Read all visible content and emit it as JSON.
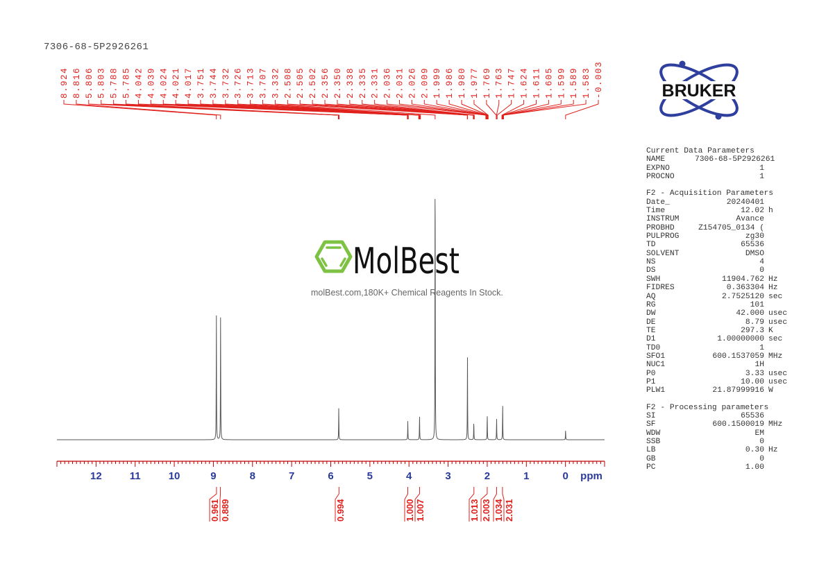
{
  "sample_id": "7306-68-5P2926261",
  "logo": {
    "brand": "BRUKER",
    "watermark_brand": "MolBest",
    "watermark_tagline": "molBest.com,180K+ Chemical Reagents In Stock."
  },
  "colors": {
    "annotation": "#e0201c",
    "spectrum": "#555555",
    "axis": "#c00000",
    "bruker_blue": "#2e3f9e",
    "molbest_green": "#7dc242"
  },
  "parameters": [
    {
      "heading": "Current Data Parameters",
      "rows": [
        {
          "key": "NAME",
          "value": "7306-68-5P2926261",
          "unit": ""
        },
        {
          "key": "EXPNO",
          "value": "1",
          "unit": ""
        },
        {
          "key": "PROCNO",
          "value": "1",
          "unit": ""
        }
      ]
    },
    {
      "heading": "F2 - Acquisition Parameters",
      "rows": [
        {
          "key": "Date_",
          "value": "20240401",
          "unit": ""
        },
        {
          "key": "Time",
          "value": "12.02",
          "unit": "h"
        },
        {
          "key": "INSTRUM",
          "value": "Avance",
          "unit": ""
        },
        {
          "key": "PROBHD",
          "value": "Z154705_0134 (",
          "unit": ""
        },
        {
          "key": "PULPROG",
          "value": "zg30",
          "unit": ""
        },
        {
          "key": "TD",
          "value": "65536",
          "unit": ""
        },
        {
          "key": "SOLVENT",
          "value": "DMSO",
          "unit": ""
        },
        {
          "key": "NS",
          "value": "4",
          "unit": ""
        },
        {
          "key": "DS",
          "value": "0",
          "unit": ""
        },
        {
          "key": "SWH",
          "value": "11904.762",
          "unit": "Hz"
        },
        {
          "key": "FIDRES",
          "value": "0.363304",
          "unit": "Hz"
        },
        {
          "key": "AQ",
          "value": "2.7525120",
          "unit": "sec"
        },
        {
          "key": "RG",
          "value": "101",
          "unit": ""
        },
        {
          "key": "DW",
          "value": "42.000",
          "unit": "usec"
        },
        {
          "key": "DE",
          "value": "8.79",
          "unit": "usec"
        },
        {
          "key": "TE",
          "value": "297.3",
          "unit": "K"
        },
        {
          "key": "D1",
          "value": "1.00000000",
          "unit": "sec"
        },
        {
          "key": "TD0",
          "value": "1",
          "unit": ""
        },
        {
          "key": "SFO1",
          "value": "600.1537059",
          "unit": "MHz"
        },
        {
          "key": "NUC1",
          "value": "1H",
          "unit": ""
        },
        {
          "key": "P0",
          "value": "3.33",
          "unit": "usec"
        },
        {
          "key": "P1",
          "value": "10.00",
          "unit": "usec"
        },
        {
          "key": "PLW1",
          "value": "21.87999916",
          "unit": "W"
        }
      ]
    },
    {
      "heading": "F2 - Processing parameters",
      "rows": [
        {
          "key": "SI",
          "value": "65536",
          "unit": ""
        },
        {
          "key": "SF",
          "value": "600.1500019",
          "unit": "MHz"
        },
        {
          "key": "WDW",
          "value": "EM",
          "unit": ""
        },
        {
          "key": "SSB",
          "value": "0",
          "unit": ""
        },
        {
          "key": "LB",
          "value": "0.30",
          "unit": "Hz"
        },
        {
          "key": "GB",
          "value": "0",
          "unit": ""
        },
        {
          "key": "PC",
          "value": "1.00",
          "unit": ""
        }
      ]
    }
  ],
  "chart_data": {
    "type": "line",
    "xlabel": "ppm",
    "xlim": [
      13,
      -1
    ],
    "x_ticks": [
      12,
      11,
      10,
      9,
      8,
      7,
      6,
      5,
      4,
      3,
      2,
      1,
      0
    ],
    "x_tick_labels": [
      "12",
      "11",
      "10",
      "9",
      "8",
      "7",
      "6",
      "5",
      "4",
      "3",
      "2",
      "1",
      "0"
    ],
    "grid": false,
    "peaks_relative_intensity": [
      {
        "ppm": 8.924,
        "intensity": 42.7
      },
      {
        "ppm": 8.816,
        "intensity": 42.7
      },
      {
        "ppm": 5.795,
        "intensity": 11.1
      },
      {
        "ppm": 4.03,
        "intensity": 6.3
      },
      {
        "ppm": 3.73,
        "intensity": 8.4
      },
      {
        "ppm": 3.332,
        "intensity": 100
      },
      {
        "ppm": 2.505,
        "intensity": 28.1
      },
      {
        "ppm": 2.343,
        "intensity": 6.3
      },
      {
        "ppm": 2.0,
        "intensity": 8.6
      },
      {
        "ppm": 1.76,
        "intensity": 7.2
      },
      {
        "ppm": 1.605,
        "intensity": 12.1
      },
      {
        "ppm": -0.003,
        "intensity": 3.2
      }
    ],
    "peak_labels": [
      "8.924",
      "8.816",
      "5.806",
      "5.803",
      "5.788",
      "5.785",
      "4.042",
      "4.039",
      "4.024",
      "4.021",
      "4.017",
      "3.751",
      "3.744",
      "3.732",
      "3.726",
      "3.713",
      "3.707",
      "3.332",
      "2.508",
      "2.505",
      "2.502",
      "2.356",
      "2.350",
      "2.338",
      "2.335",
      "2.331",
      "2.036",
      "2.031",
      "2.026",
      "2.009",
      "1.999",
      "1.986",
      "1.980",
      "1.977",
      "1.769",
      "1.763",
      "1.747",
      "1.624",
      "1.611",
      "1.605",
      "1.599",
      "1.589",
      "1.583",
      "-0.003"
    ],
    "integrals": [
      {
        "ppm": 8.92,
        "value": "0.961"
      },
      {
        "ppm": 8.82,
        "value": "0.889"
      },
      {
        "ppm": 5.79,
        "value": "0.994"
      },
      {
        "ppm": 4.03,
        "value": "1.000"
      },
      {
        "ppm": 3.73,
        "value": "1.007"
      },
      {
        "ppm": 2.34,
        "value": "1.013"
      },
      {
        "ppm": 2.0,
        "value": "2.003"
      },
      {
        "ppm": 1.76,
        "value": "1.034"
      },
      {
        "ppm": 1.61,
        "value": "2.031"
      }
    ]
  }
}
